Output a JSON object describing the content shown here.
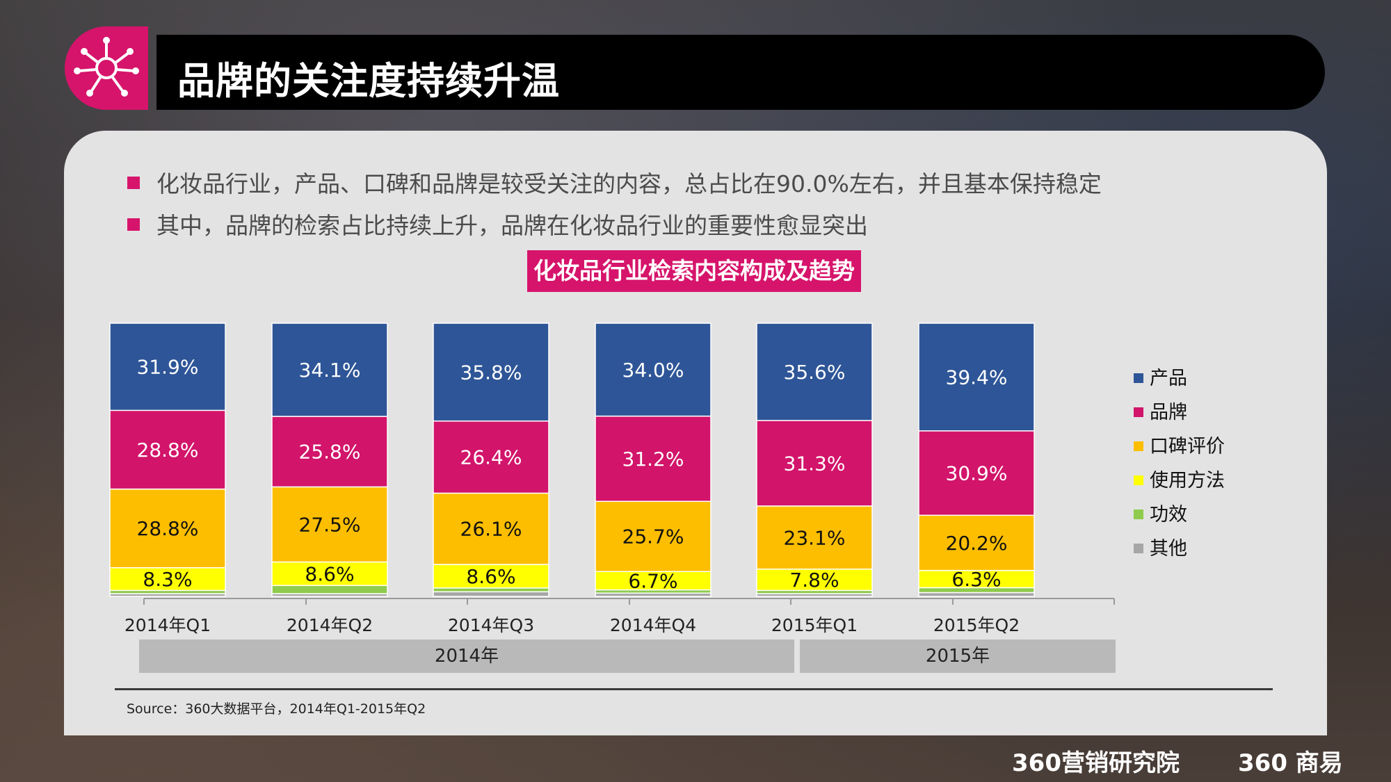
{
  "header": {
    "title": "品牌的关注度持续升温"
  },
  "bullets": [
    "化妆品行业，产品、口碑和品牌是较受关注的内容，总占比在90.0%左右，并且基本保持稳定",
    "其中，品牌的检索占比持续上升，品牌在化妆品行业的重要性愈显突出"
  ],
  "chart_data": {
    "type": "bar",
    "stacked": true,
    "title": "化妆品行业检索内容构成及趋势",
    "categories": [
      "2014年Q1",
      "2014年Q2",
      "2014年Q3",
      "2014年Q4",
      "2015年Q1",
      "2015年Q2"
    ],
    "groups": [
      {
        "label": "2014年",
        "categories": [
          "2014年Q1",
          "2014年Q2",
          "2014年Q3",
          "2014年Q4"
        ]
      },
      {
        "label": "2015年",
        "categories": [
          "2015年Q1",
          "2015年Q2"
        ]
      }
    ],
    "series": [
      {
        "name": "产品",
        "color": "#2e5597",
        "values": [
          31.9,
          34.1,
          35.8,
          34.0,
          35.6,
          39.4
        ],
        "labels": [
          "31.9%",
          "34.1%",
          "35.8%",
          "34.0%",
          "35.6%",
          "39.4%"
        ]
      },
      {
        "name": "品牌",
        "color": "#d2146a",
        "values": [
          28.8,
          25.8,
          26.4,
          31.2,
          31.3,
          30.9
        ],
        "labels": [
          "28.8%",
          "25.8%",
          "26.4%",
          "31.2%",
          "31.3%",
          "30.9%"
        ]
      },
      {
        "name": "口碑评价",
        "color": "#fdbe00",
        "values": [
          28.8,
          27.5,
          26.1,
          25.7,
          23.1,
          20.2
        ],
        "labels": [
          "28.8%",
          "27.5%",
          "26.1%",
          "25.7%",
          "23.1%",
          "20.2%"
        ]
      },
      {
        "name": "使用方法",
        "color": "#ffff00",
        "values": [
          8.3,
          8.6,
          8.6,
          6.7,
          7.8,
          6.3
        ],
        "labels": [
          "8.3%",
          "8.6%",
          "8.6%",
          "6.7%",
          "7.8%",
          "6.3%"
        ]
      },
      {
        "name": "功效",
        "color": "#8fcb4c",
        "values": [
          1.2,
          3.0,
          1.4,
          1.2,
          1.2,
          1.8
        ],
        "labels": [
          "",
          "",
          "",
          "",
          "",
          ""
        ]
      },
      {
        "name": "其他",
        "color": "#a6a6a6",
        "values": [
          1.0,
          1.0,
          1.7,
          1.2,
          1.0,
          1.4
        ],
        "labels": [
          "",
          "",
          "",
          "",
          "",
          ""
        ]
      }
    ],
    "ylim": [
      0,
      100
    ],
    "legend_position": "right"
  },
  "year_bands": [
    "2014年",
    "2015年"
  ],
  "source": "Source：360大数据平台，2014年Q1-2015年Q2",
  "brand": {
    "left": "360营销研究院",
    "right": "360 商易"
  }
}
